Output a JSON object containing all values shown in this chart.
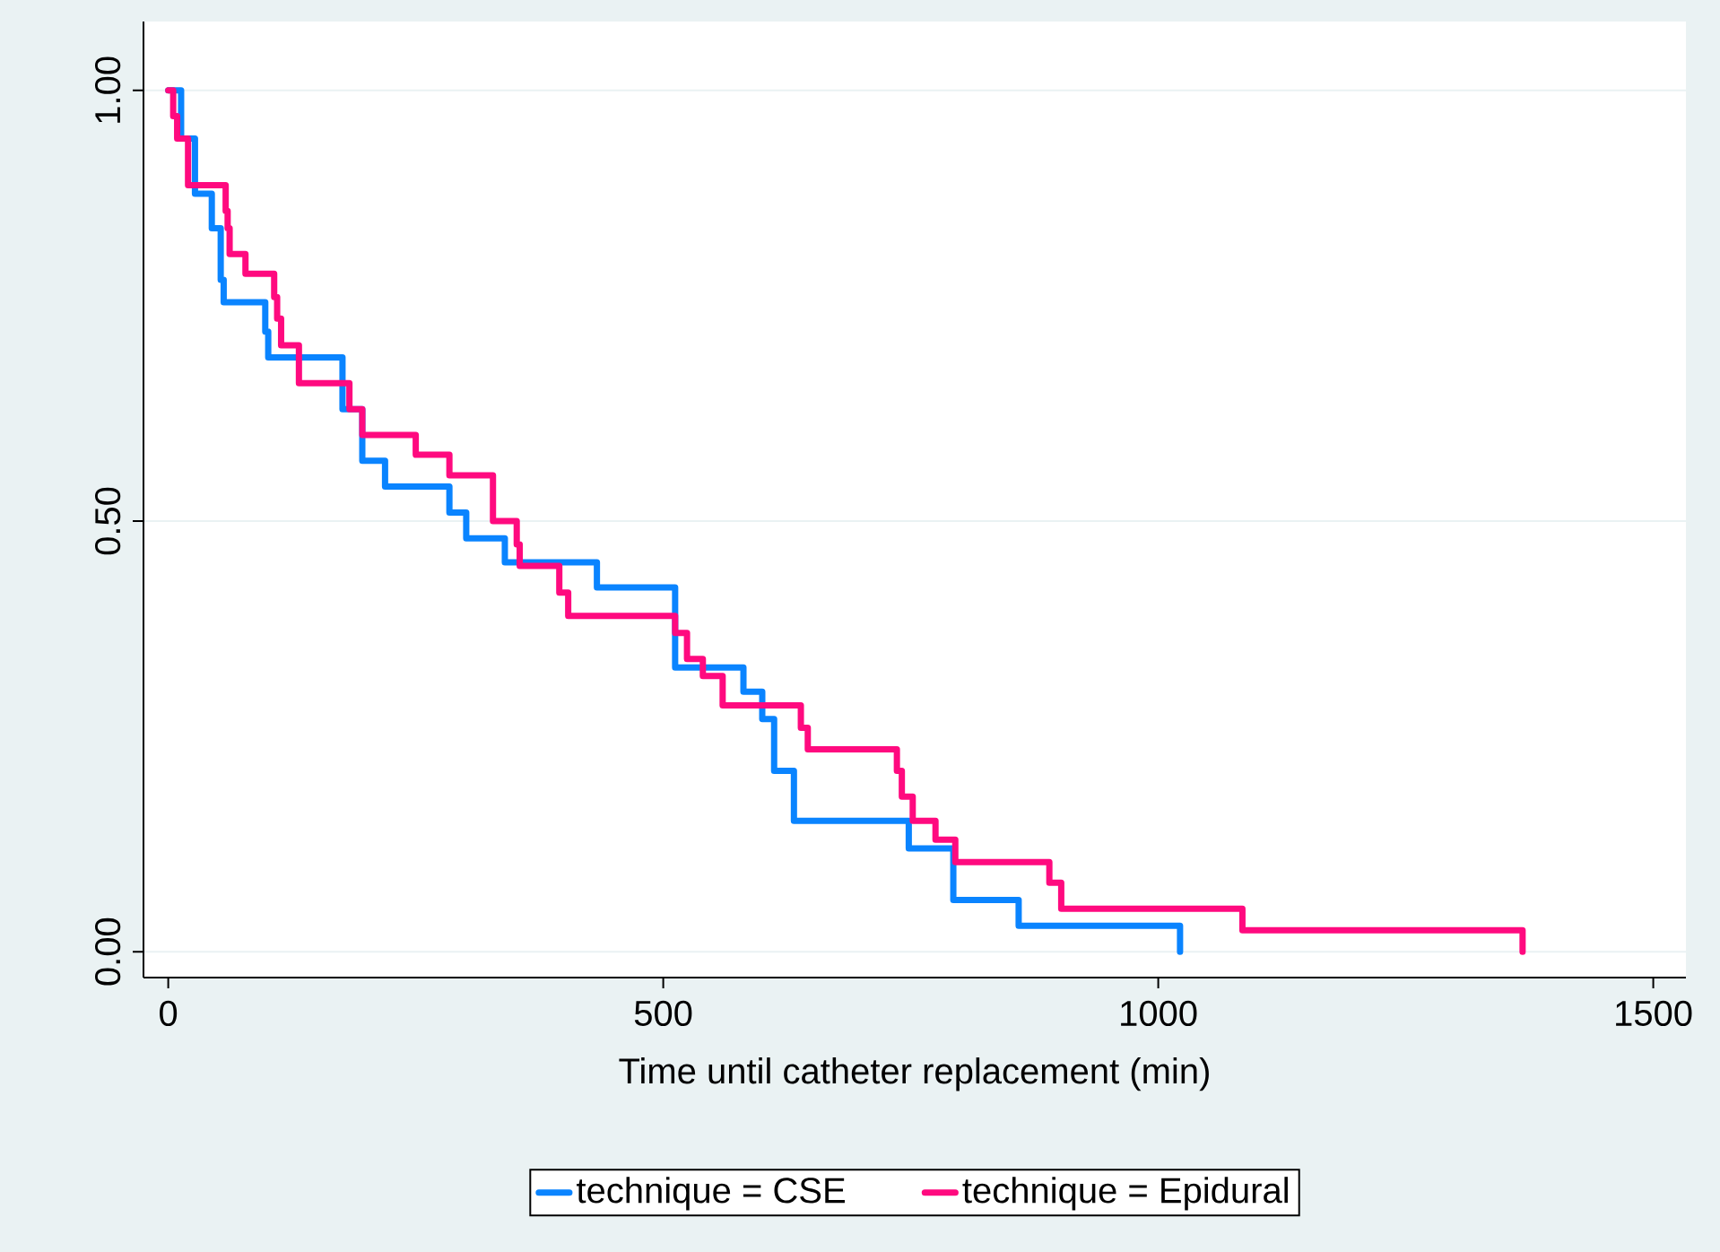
{
  "chart_data": {
    "type": "step",
    "xlabel": "Time until catheter replacement (min)",
    "xlim": [
      -25,
      1533
    ],
    "ylim": [
      -0.03,
      1.08
    ],
    "xticks": [
      0,
      500,
      1000,
      1500
    ],
    "yticks": [
      {
        "value": 0,
        "label": "0.00"
      },
      {
        "value": 0.5,
        "label": "0.50"
      },
      {
        "value": 1,
        "label": "1.00"
      }
    ],
    "grid": "y",
    "legend": "bottom",
    "marker": "none",
    "line_style": "solid",
    "series": [
      {
        "name": "technique = CSE",
        "color": "#0a84ff",
        "x": [
          0,
          13,
          27,
          44,
          53,
          56,
          98,
          101,
          176,
          196,
          219,
          284,
          301,
          340,
          433,
          512,
          581,
          600,
          612,
          632,
          748,
          793,
          859,
          1022
        ],
        "values": [
          1,
          0.944,
          0.88,
          0.84,
          0.78,
          0.754,
          0.72,
          0.69,
          0.63,
          0.57,
          0.54,
          0.51,
          0.48,
          0.452,
          0.423,
          0.33,
          0.302,
          0.27,
          0.21,
          0.152,
          0.12,
          0.06,
          0.03,
          0
        ]
      },
      {
        "name": "technique = Epidural",
        "color": "#ff0a7f",
        "x": [
          0,
          5,
          9,
          20,
          58,
          60,
          62,
          78,
          107,
          110,
          114,
          132,
          183,
          196,
          250,
          284,
          328,
          352,
          355,
          395,
          404,
          512,
          524,
          540,
          560,
          639,
          646,
          736,
          741,
          752,
          775,
          795,
          890,
          902,
          1085,
          1368
        ],
        "values": [
          1,
          0.97,
          0.944,
          0.89,
          0.86,
          0.84,
          0.81,
          0.787,
          0.76,
          0.735,
          0.704,
          0.66,
          0.63,
          0.6,
          0.577,
          0.553,
          0.5,
          0.473,
          0.448,
          0.417,
          0.39,
          0.37,
          0.34,
          0.32,
          0.286,
          0.26,
          0.235,
          0.21,
          0.18,
          0.152,
          0.13,
          0.104,
          0.08,
          0.05,
          0.025,
          0
        ]
      }
    ]
  }
}
